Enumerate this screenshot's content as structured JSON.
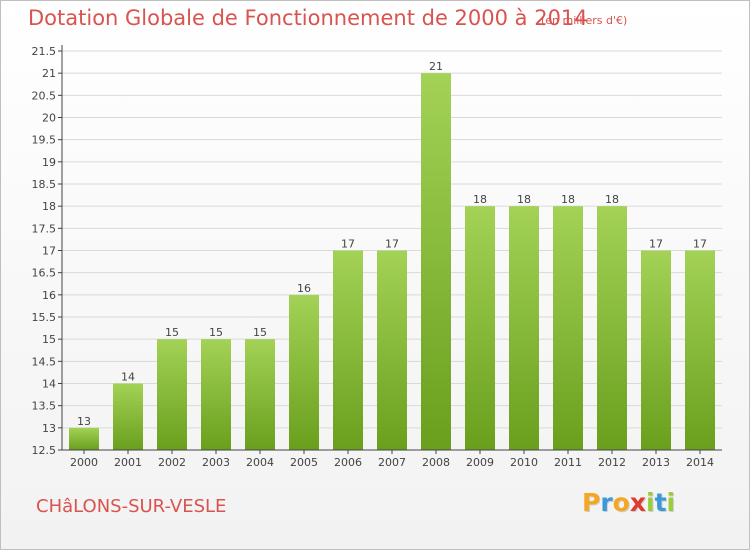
{
  "header": {
    "title": "Dotation Globale de Fonctionnement de 2000 à 2014",
    "subtitle": "(en milliers d'€)"
  },
  "footer": {
    "commune": "CHâLONS-SUR-VESLE",
    "logo_letters": [
      "P",
      "r",
      "o",
      "x",
      "i",
      "t",
      "i"
    ],
    "logo_colors": [
      "#f5a623",
      "#3a9ad9",
      "#f5a623",
      "#e23a2e",
      "#9ccc3c",
      "#3a9ad9",
      "#9ccc3c"
    ]
  },
  "colors": {
    "bar_top": "#a3d256",
    "bar_bottom": "#6a9f1d",
    "grid": "#d9d9d9",
    "axis": "#444444",
    "title": "#d9534f"
  },
  "chart_data": {
    "type": "bar",
    "title": "Dotation Globale de Fonctionnement de 2000 à 2014",
    "subtitle": "(en milliers d'€)",
    "xlabel": "",
    "ylabel": "",
    "categories": [
      "2000",
      "2001",
      "2002",
      "2003",
      "2004",
      "2005",
      "2006",
      "2007",
      "2008",
      "2009",
      "2010",
      "2011",
      "2012",
      "2013",
      "2014"
    ],
    "values": [
      13,
      14,
      15,
      15,
      15,
      16,
      17,
      17,
      21,
      18,
      18,
      18,
      18,
      17,
      17
    ],
    "ylim": [
      12.5,
      21.5
    ],
    "yticks": [
      12.5,
      13,
      13.5,
      14,
      14.5,
      15,
      15.5,
      16,
      16.5,
      17,
      17.5,
      18,
      18.5,
      19,
      19.5,
      20,
      20.5,
      21,
      21.5
    ],
    "ytick_labels": [
      "12.5",
      "13",
      "13.5",
      "14",
      "14.5",
      "15",
      "15.5",
      "16",
      "16.5",
      "17",
      "17.5",
      "18",
      "18.5",
      "19",
      "19.5",
      "20",
      "20.5",
      "21",
      "21.5"
    ],
    "grid": true,
    "legend": "none"
  }
}
